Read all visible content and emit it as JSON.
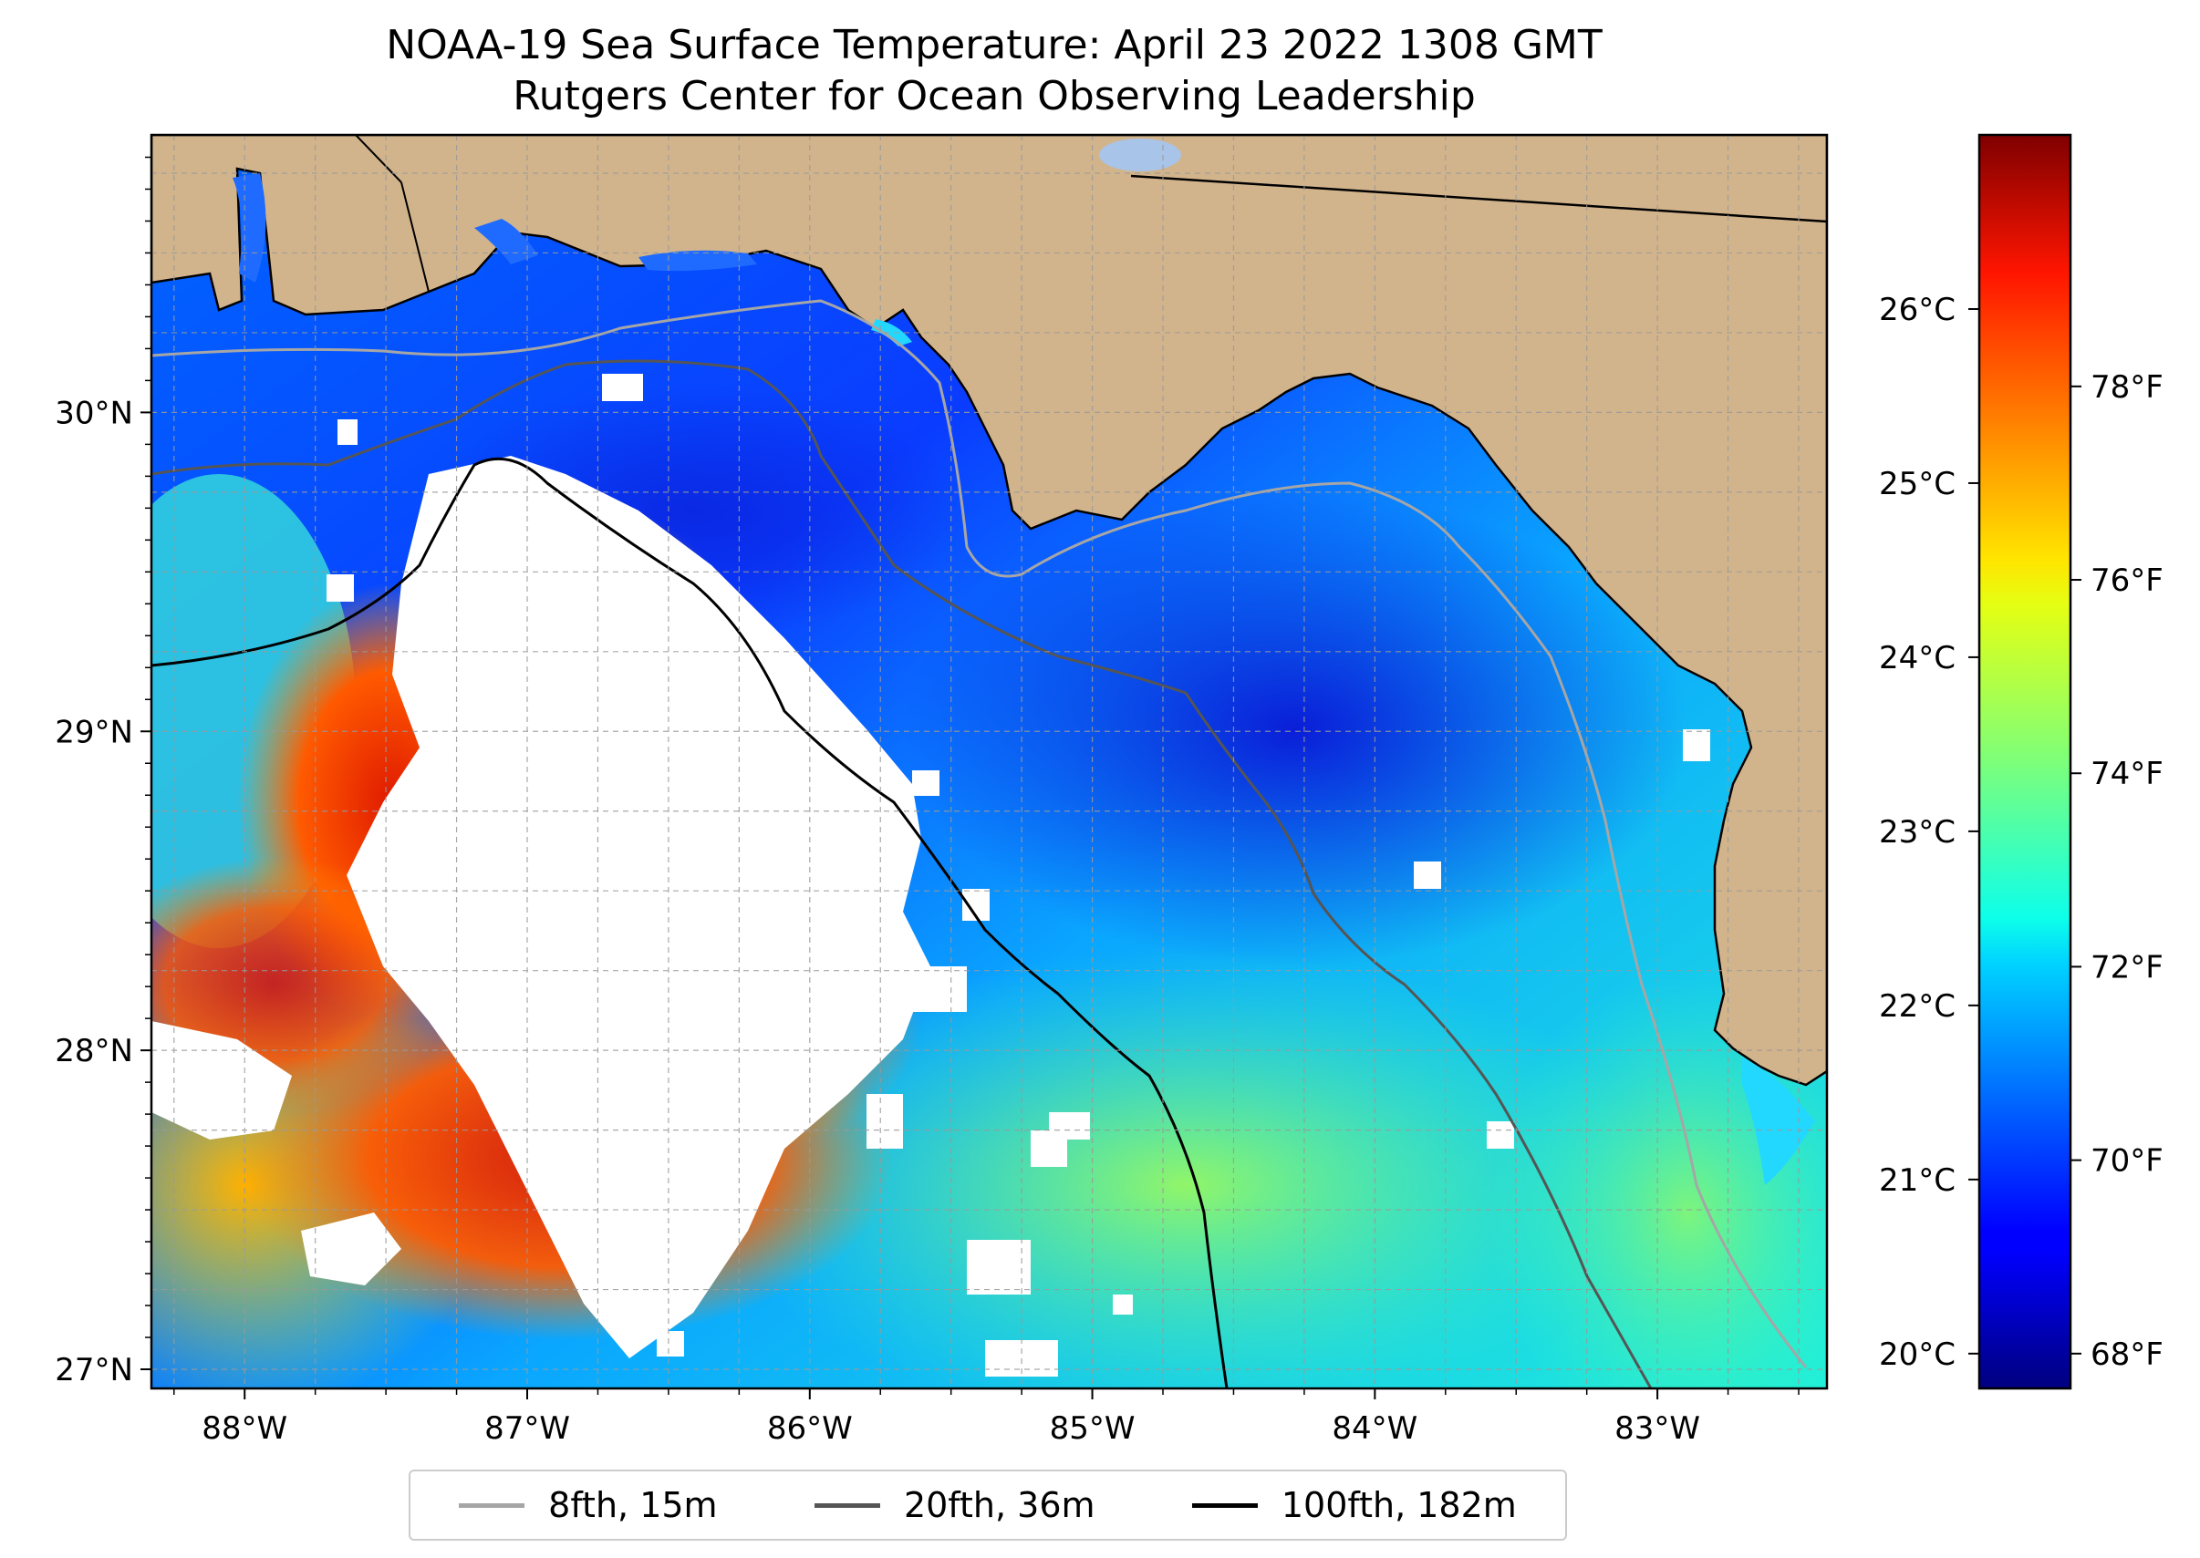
{
  "title": "NOAA-19 Sea Surface Temperature: April 23 2022 1308 GMT",
  "subtitle": "Rutgers Center for Ocean Observing Leadership",
  "map": {
    "lon_range": [
      -88.33,
      -82.4
    ],
    "lat_range": [
      26.94,
      30.87
    ],
    "lat_ticks": [
      {
        "v": 30,
        "label": "30°N"
      },
      {
        "v": 29,
        "label": "29°N"
      },
      {
        "v": 28,
        "label": "28°N"
      },
      {
        "v": 27,
        "label": "27°N"
      }
    ],
    "lon_ticks": [
      {
        "v": -88,
        "label": "88°W"
      },
      {
        "v": -87,
        "label": "87°W"
      },
      {
        "v": -86,
        "label": "86°W"
      },
      {
        "v": -85,
        "label": "85°W"
      },
      {
        "v": -84,
        "label": "84°W"
      },
      {
        "v": -83,
        "label": "83°W"
      }
    ],
    "grid": true,
    "grid_spacing_deg": 0.25,
    "land_color": "#d2b48c",
    "cloud_color": "#ffffff",
    "colormap": "jet"
  },
  "colorbar": {
    "celsius_range": [
      19.8,
      27.0
    ],
    "celsius_ticks": [
      {
        "v": 20,
        "label": "20°C"
      },
      {
        "v": 21,
        "label": "21°C"
      },
      {
        "v": 22,
        "label": "22°C"
      },
      {
        "v": 23,
        "label": "23°C"
      },
      {
        "v": 24,
        "label": "24°C"
      },
      {
        "v": 25,
        "label": "25°C"
      },
      {
        "v": 26,
        "label": "26°C"
      }
    ],
    "fahrenheit_ticks": [
      {
        "v": 68,
        "label": "68°F"
      },
      {
        "v": 70,
        "label": "70°F"
      },
      {
        "v": 72,
        "label": "72°F"
      },
      {
        "v": 74,
        "label": "74°F"
      },
      {
        "v": 76,
        "label": "76°F"
      },
      {
        "v": 78,
        "label": "78°F"
      }
    ]
  },
  "legend": {
    "placement": "bottom-center",
    "items": [
      {
        "label": "8fth, 15m",
        "color": "#a6a6a6"
      },
      {
        "label": "20fth, 36m",
        "color": "#555555"
      },
      {
        "label": "100fth, 182m",
        "color": "#000000"
      }
    ]
  }
}
